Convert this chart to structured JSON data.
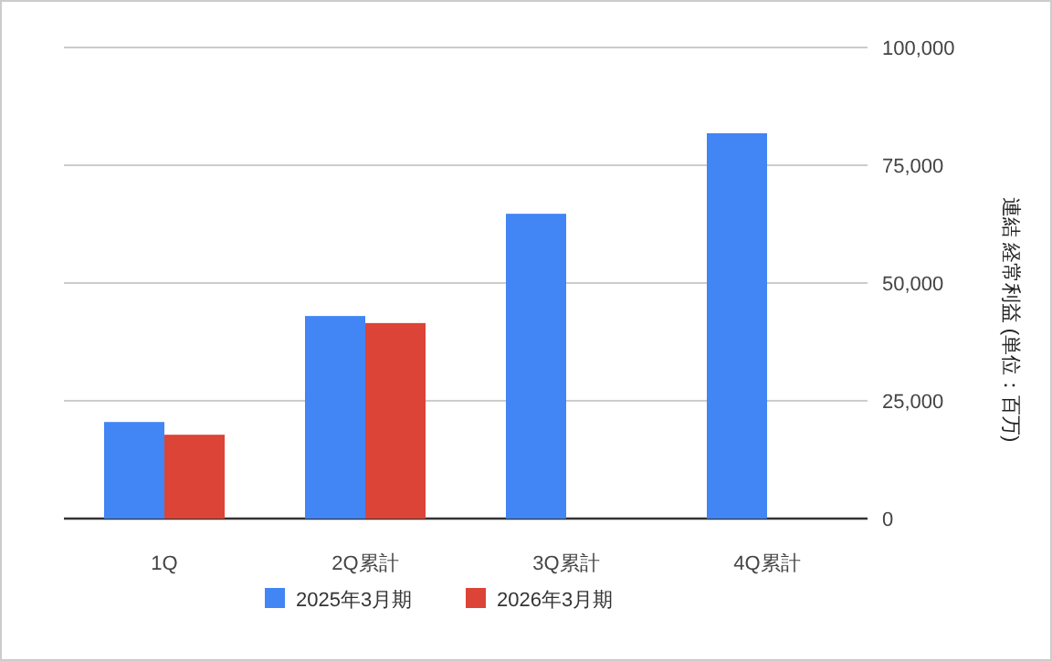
{
  "chart_data": {
    "type": "bar",
    "ylabel": "連結 経常利益 (単位：百万)",
    "categories": [
      "1Q",
      "2Q累計",
      "3Q累計",
      "4Q累計"
    ],
    "series": [
      {
        "name": "2025年3月期",
        "color": "#4285f4",
        "values": [
          20500,
          43000,
          64700,
          81800
        ]
      },
      {
        "name": "2026年3月期",
        "color": "#db4437",
        "values": [
          17800,
          41500,
          null,
          null
        ]
      }
    ],
    "ylim": [
      0,
      100000
    ],
    "yticks": [
      {
        "value": 0,
        "label": "0"
      },
      {
        "value": 25000,
        "label": "25,000"
      },
      {
        "value": 50000,
        "label": "50,000"
      },
      {
        "value": 75000,
        "label": "75,000"
      },
      {
        "value": 100000,
        "label": "100,000"
      }
    ],
    "grid": "y",
    "legend": "bottom"
  }
}
